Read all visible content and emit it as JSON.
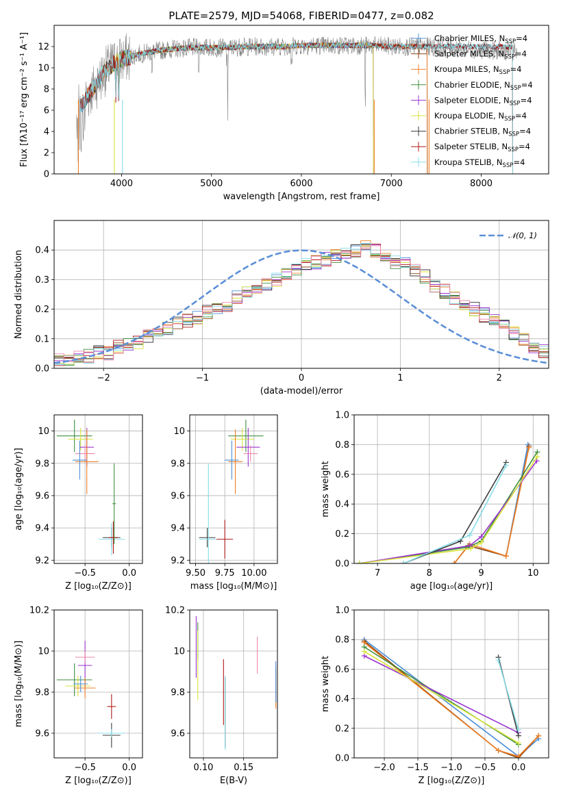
{
  "figure": {
    "title": "PLATE=2579, MJD=54068, FIBERID=0477, z=0.082"
  },
  "series_colors": {
    "Chabrier MILES": "#4c8fd6",
    "Salpeter MILES": "#8b4513",
    "Kroupa MILES": "#f07f24",
    "Chabrier ELODIE": "#3e8e3e",
    "Salpeter ELODIE": "#9a32cd",
    "Kroupa ELODIE": "#d8e33a",
    "Chabrier STELIB": "#3a3a3a",
    "Salpeter STELIB": "#b01818",
    "Kroupa STELIB": "#86dde8",
    "data": "#808080",
    "normal": "#5b8fd6",
    "pink": "#ee88aa"
  },
  "chart_data": [
    {
      "id": "spectrum",
      "type": "line",
      "title": "PLATE=2579, MJD=54068, FIBERID=0477, z=0.082",
      "xlabel": "wavelength [Angstrom, rest frame]",
      "ylabel": "Flux [fλ10⁻¹⁷ erg cm⁻² s⁻¹ A⁻¹]",
      "xlim": [
        3250,
        8750
      ],
      "ylim": [
        0,
        14
      ],
      "xticks": [
        4000,
        5000,
        6000,
        7000,
        8000
      ],
      "yticks": [
        0,
        2,
        4,
        6,
        8,
        10,
        12
      ],
      "grid": false,
      "legend_position": "right",
      "legend": [
        {
          "label": "Chabrier MILES, N",
          "sub": "SSP",
          "suffix": "=4"
        },
        {
          "label": "Salpeter MILES, N",
          "sub": "SSP",
          "suffix": "=4"
        },
        {
          "label": "Kroupa MILES, N",
          "sub": "SSP",
          "suffix": "=4"
        },
        {
          "label": "Chabrier ELODIE, N",
          "sub": "SSP",
          "suffix": "=4"
        },
        {
          "label": "Salpeter ELODIE, N",
          "sub": "SSP",
          "suffix": "=4"
        },
        {
          "label": "Kroupa ELODIE, N",
          "sub": "SSP",
          "suffix": "=4"
        },
        {
          "label": "Chabrier STELIB, N",
          "sub": "SSP",
          "suffix": "=4"
        },
        {
          "label": "Salpeter STELIB, N",
          "sub": "SSP",
          "suffix": "=4"
        },
        {
          "label": "Kroupa STELIB, N",
          "sub": "SSP",
          "suffix": "=4"
        }
      ],
      "data_continuum": {
        "x": [
          3500,
          3600,
          3700,
          3800,
          3900,
          4000,
          4200,
          4400,
          4600,
          4800,
          5000,
          5200,
          5400,
          5600,
          5800,
          6000,
          6200,
          6400,
          6600,
          6800,
          7000,
          7200,
          7400,
          7600,
          7800,
          8000,
          8200,
          8400
        ],
        "y": [
          6.0,
          7.0,
          8.2,
          9.5,
          10.3,
          10.8,
          11.3,
          11.6,
          11.8,
          11.9,
          11.9,
          11.9,
          12.0,
          12.0,
          12.0,
          12.1,
          12.1,
          12.1,
          12.1,
          12.1,
          12.0,
          12.0,
          12.0,
          11.9,
          11.8,
          11.7,
          11.6,
          11.5
        ]
      },
      "model_continuum": {
        "x": [
          3500,
          3600,
          3700,
          3800,
          3900,
          4000,
          4200,
          4400,
          4600,
          4800,
          5000,
          5200,
          5400,
          5600,
          5800,
          6000,
          6200,
          6400,
          6600,
          6800,
          7000,
          7200,
          7400
        ],
        "y": [
          6.0,
          7.0,
          8.3,
          9.6,
          10.3,
          10.8,
          11.3,
          11.6,
          11.8,
          11.9,
          11.9,
          11.9,
          12.0,
          12.0,
          12.0,
          12.1,
          12.1,
          12.1,
          12.1,
          12.1,
          12.0,
          12.0,
          12.0
        ]
      }
    },
    {
      "id": "residuals",
      "type": "line",
      "xlabel": "(data-model)/error",
      "ylabel": "Normed distribution",
      "xlim": [
        -2.5,
        2.5
      ],
      "ylim": [
        0,
        0.5
      ],
      "xticks": [
        -2,
        -1,
        0,
        1,
        2
      ],
      "xtick_labels": [
        "−2",
        "−1",
        "0",
        "1",
        "2"
      ],
      "yticks": [
        0.0,
        0.1,
        0.2,
        0.3,
        0.4
      ],
      "grid": true,
      "legend": "𝒩(0, 1)",
      "hist_edges_start": -2.5,
      "hist_bin_width": 0.1,
      "hist_values": [
        0.03,
        0.028,
        0.045,
        0.04,
        0.055,
        0.05,
        0.07,
        0.085,
        0.09,
        0.105,
        0.12,
        0.135,
        0.15,
        0.16,
        0.17,
        0.19,
        0.205,
        0.215,
        0.24,
        0.255,
        0.27,
        0.28,
        0.3,
        0.32,
        0.33,
        0.35,
        0.36,
        0.37,
        0.38,
        0.39,
        0.395,
        0.41,
        0.395,
        0.38,
        0.36,
        0.35,
        0.33,
        0.31,
        0.28,
        0.26,
        0.24,
        0.22,
        0.2,
        0.18,
        0.16,
        0.14,
        0.12,
        0.1,
        0.075,
        0.06
      ]
    },
    {
      "id": "age-vs-Z",
      "type": "scatter",
      "xlabel": "Z [log₁₀(Z/Z⊙)]",
      "ylabel": "age  [log₁₀(age/yr)]",
      "xlim": [
        -0.85,
        0.15
      ],
      "ylim": [
        9.18,
        10.1
      ],
      "xticks": [
        -0.5,
        0.0
      ],
      "xtick_labels": [
        "−0.5",
        "0.0"
      ],
      "yticks": [
        9.2,
        9.4,
        9.6,
        9.8,
        10.0
      ],
      "grid": true,
      "points": [
        {
          "s": "Chabrier ELODIE",
          "x": -0.62,
          "y": 9.97,
          "xerr": 0.2,
          "yerr": 0.1
        },
        {
          "s": "Kroupa ELODIE",
          "x": -0.55,
          "y": 9.95,
          "xerr": 0.14,
          "yerr": 0.07
        },
        {
          "s": "Salpeter ELODIE",
          "x": -0.48,
          "y": 9.9,
          "xerr": 0.08,
          "yerr": 0.12
        },
        {
          "s": "pink",
          "x": -0.5,
          "y": 9.86,
          "xerr": 0.11,
          "yerr": 0.05
        },
        {
          "s": "Kroupa MILES",
          "x": -0.48,
          "y": 9.81,
          "xerr": 0.13,
          "yerr": 0.2
        },
        {
          "s": "Chabrier MILES",
          "x": -0.56,
          "y": 9.82,
          "xerr": 0.08,
          "yerr": 0.12
        },
        {
          "s": "Chabrier STELIB",
          "x": -0.2,
          "y": 9.34,
          "xerr": 0.1,
          "yerr": 0.06
        },
        {
          "s": "Kroupa STELIB",
          "x": -0.2,
          "y": 9.33,
          "xerr": 0.15,
          "yerr": 0.1
        },
        {
          "s": "Salpeter STELIB",
          "x": -0.18,
          "y": 9.34,
          "xerr": 0.05,
          "yerr": 0.1
        },
        {
          "s": "Chabrier ELODIE",
          "x": -0.17,
          "y": 9.55,
          "xerr": 0.02,
          "yerr": 0.25
        }
      ]
    },
    {
      "id": "age-vs-mass",
      "type": "scatter",
      "xlabel": "mass [log₁₀(M/M⊙)]",
      "ylabel": "",
      "xlim": [
        9.45,
        10.2
      ],
      "ylim": [
        9.18,
        10.1
      ],
      "xticks": [
        9.5,
        9.75,
        10.0
      ],
      "xtick_labels": [
        "9.50",
        "9.75",
        "10.00"
      ],
      "yticks": [
        9.2,
        9.4,
        9.6,
        9.8,
        10.0
      ],
      "grid": true,
      "points": [
        {
          "s": "Chabrier ELODIE",
          "x": 9.93,
          "y": 9.97,
          "xerr": 0.15,
          "yerr": 0.1
        },
        {
          "s": "Kroupa ELODIE",
          "x": 9.9,
          "y": 9.95,
          "xerr": 0.1,
          "yerr": 0.07
        },
        {
          "s": "Salpeter ELODIE",
          "x": 9.95,
          "y": 9.9,
          "xerr": 0.1,
          "yerr": 0.12
        },
        {
          "s": "pink",
          "x": 9.97,
          "y": 9.86,
          "xerr": 0.06,
          "yerr": 0.05
        },
        {
          "s": "Kroupa MILES",
          "x": 9.84,
          "y": 9.81,
          "xerr": 0.06,
          "yerr": 0.2
        },
        {
          "s": "Chabrier MILES",
          "x": 9.81,
          "y": 9.82,
          "xerr": 0.06,
          "yerr": 0.12
        },
        {
          "s": "Chabrier STELIB",
          "x": 9.6,
          "y": 9.34,
          "xerr": 0.07,
          "yerr": 0.06
        },
        {
          "s": "Kroupa STELIB",
          "x": 9.61,
          "y": 9.33,
          "xerr": 0.08,
          "yerr": 0.47
        },
        {
          "s": "Salpeter STELIB",
          "x": 9.75,
          "y": 9.33,
          "xerr": 0.07,
          "yerr": 0.12
        }
      ]
    },
    {
      "id": "weight-vs-age",
      "type": "line",
      "xlabel": "age  [log₁₀(age/yr)]",
      "ylabel": "mass weight",
      "xlim": [
        6.55,
        10.3
      ],
      "ylim": [
        0,
        1
      ],
      "xticks": [
        7,
        8,
        9,
        10
      ],
      "yticks": [
        0.0,
        0.2,
        0.4,
        0.6,
        0.8,
        1.0
      ],
      "grid": true,
      "series": [
        {
          "s": "Chabrier MILES",
          "x": [
            8.48,
            8.75,
            9.48,
            9.9
          ],
          "y": [
            0.0,
            0.12,
            0.05,
            0.8
          ]
        },
        {
          "s": "Salpeter MILES",
          "x": [
            8.48,
            8.75,
            9.48,
            9.92
          ],
          "y": [
            0.0,
            0.12,
            0.05,
            0.79
          ]
        },
        {
          "s": "Kroupa MILES",
          "x": [
            8.48,
            8.78,
            9.48,
            9.92
          ],
          "y": [
            0.0,
            0.13,
            0.05,
            0.78
          ]
        },
        {
          "s": "Chabrier ELODIE",
          "x": [
            6.65,
            8.75,
            9.0,
            10.08
          ],
          "y": [
            0.0,
            0.11,
            0.15,
            0.75
          ]
        },
        {
          "s": "Salpeter ELODIE",
          "x": [
            6.65,
            8.78,
            9.0,
            10.07
          ],
          "y": [
            0.0,
            0.12,
            0.18,
            0.69
          ]
        },
        {
          "s": "Kroupa ELODIE",
          "x": [
            6.65,
            8.8,
            9.0,
            10.08
          ],
          "y": [
            0.0,
            0.1,
            0.14,
            0.72
          ]
        },
        {
          "s": "Chabrier STELIB",
          "x": [
            7.5,
            8.6,
            9.48
          ],
          "y": [
            0.0,
            0.15,
            0.68
          ]
        },
        {
          "s": "Kroupa STELIB",
          "x": [
            7.5,
            8.78,
            9.48
          ],
          "y": [
            0.0,
            0.19,
            0.66
          ]
        }
      ]
    },
    {
      "id": "mass-vs-Z",
      "type": "scatter",
      "xlabel": "Z [log₁₀(Z/Z⊙)]",
      "ylabel": "mass [log₁₀(M/M⊙)]",
      "xlim": [
        -0.85,
        0.15
      ],
      "ylim": [
        9.48,
        10.2
      ],
      "xticks": [
        -0.5,
        0.0
      ],
      "xtick_labels": [
        "−0.5",
        "0.0"
      ],
      "yticks": [
        9.6,
        9.8,
        10.0,
        10.2
      ],
      "grid": true,
      "points": [
        {
          "s": "Chabrier ELODIE",
          "x": -0.62,
          "y": 9.86,
          "xerr": 0.2,
          "yerr": 0.08
        },
        {
          "s": "Kroupa ELODIE",
          "x": -0.58,
          "y": 9.83,
          "xerr": 0.14,
          "yerr": 0.05
        },
        {
          "s": "Salpeter ELODIE",
          "x": -0.5,
          "y": 9.93,
          "xerr": 0.08,
          "yerr": 0.12
        },
        {
          "s": "pink",
          "x": -0.5,
          "y": 9.97,
          "xerr": 0.11,
          "yerr": 0.03
        },
        {
          "s": "Kroupa MILES",
          "x": -0.5,
          "y": 9.82,
          "xerr": 0.12,
          "yerr": 0.05
        },
        {
          "s": "Chabrier MILES",
          "x": -0.55,
          "y": 9.84,
          "xerr": 0.08,
          "yerr": 0.04
        },
        {
          "s": "Salpeter STELIB",
          "x": -0.2,
          "y": 9.73,
          "xerr": 0.05,
          "yerr": 0.06
        },
        {
          "s": "Chabrier STELIB",
          "x": -0.2,
          "y": 9.59,
          "xerr": 0.1,
          "yerr": 0.06
        },
        {
          "s": "Kroupa STELIB",
          "x": -0.2,
          "y": 9.6,
          "xerr": 0.15,
          "yerr": 0.02
        }
      ]
    },
    {
      "id": "mass-vs-EBV",
      "type": "scatter",
      "xlabel": "E(B-V)",
      "ylabel": "",
      "xlim": [
        0.083,
        0.192
      ],
      "ylim": [
        9.48,
        10.2
      ],
      "xticks": [
        0.1,
        0.15
      ],
      "xtick_labels": [
        "0.10",
        "0.15"
      ],
      "yticks": [
        9.6,
        9.8,
        10.0,
        10.2
      ],
      "grid": true,
      "points": [
        {
          "s": "Salpeter ELODIE",
          "x": 0.091,
          "y": 10.02,
          "xerr": 0,
          "yerr": 0.15
        },
        {
          "s": "Chabrier ELODIE",
          "x": 0.093,
          "y": 10.05,
          "xerr": 0,
          "yerr": 0.09
        },
        {
          "s": "Kroupa ELODIE",
          "x": 0.093,
          "y": 9.93,
          "xerr": 0,
          "yerr": 0.17
        },
        {
          "s": "Salpeter STELIB",
          "x": 0.125,
          "y": 9.8,
          "xerr": 0,
          "yerr": 0.16
        },
        {
          "s": "Chabrier STELIB",
          "x": 0.127,
          "y": 9.7,
          "xerr": 0,
          "yerr": 0.17
        },
        {
          "s": "Kroupa STELIB",
          "x": 0.127,
          "y": 9.7,
          "xerr": 0,
          "yerr": 0.18
        },
        {
          "s": "pink",
          "x": 0.167,
          "y": 9.98,
          "xerr": 0,
          "yerr": 0.09
        },
        {
          "s": "Kroupa MILES",
          "x": 0.19,
          "y": 9.82,
          "xerr": 0,
          "yerr": 0.1
        },
        {
          "s": "Chabrier MILES",
          "x": 0.19,
          "y": 9.85,
          "xerr": 0,
          "yerr": 0.1
        }
      ]
    },
    {
      "id": "weight-vs-Z",
      "type": "line",
      "xlabel": "Z [log₁₀(Z/Z⊙)]",
      "ylabel": "mass weight",
      "xlim": [
        -2.45,
        0.45
      ],
      "ylim": [
        0,
        1
      ],
      "xticks": [
        -2.0,
        -1.5,
        -1.0,
        -0.5,
        0.0
      ],
      "xtick_labels": [
        "−2.0",
        "−1.5",
        "−1.0",
        "−0.5",
        "0.0"
      ],
      "yticks": [
        0.0,
        0.2,
        0.4,
        0.6,
        0.8,
        1.0
      ],
      "grid": true,
      "series": [
        {
          "s": "Chabrier MILES",
          "x": [
            -2.3,
            0.0,
            0.3
          ],
          "y": [
            0.8,
            0.01,
            0.13
          ]
        },
        {
          "s": "Salpeter MILES",
          "x": [
            -2.3,
            -0.3,
            0.0,
            0.3
          ],
          "y": [
            0.79,
            0.05,
            0.0,
            0.15
          ]
        },
        {
          "s": "Kroupa MILES",
          "x": [
            -2.3,
            -0.3,
            0.0,
            0.3
          ],
          "y": [
            0.78,
            0.05,
            0.01,
            0.15
          ]
        },
        {
          "s": "Chabrier ELODIE",
          "x": [
            -2.3,
            0.0
          ],
          "y": [
            0.75,
            0.09
          ]
        },
        {
          "s": "Salpeter ELODIE",
          "x": [
            -2.3,
            0.0
          ],
          "y": [
            0.69,
            0.17
          ]
        },
        {
          "s": "Kroupa ELODIE",
          "x": [
            -2.3,
            0.0
          ],
          "y": [
            0.72,
            0.1
          ]
        },
        {
          "s": "Chabrier STELIB",
          "x": [
            -0.3,
            0.0
          ],
          "y": [
            0.68,
            0.15
          ]
        },
        {
          "s": "Kroupa STELIB",
          "x": [
            -0.3,
            0.0
          ],
          "y": [
            0.66,
            0.19
          ]
        }
      ]
    }
  ]
}
